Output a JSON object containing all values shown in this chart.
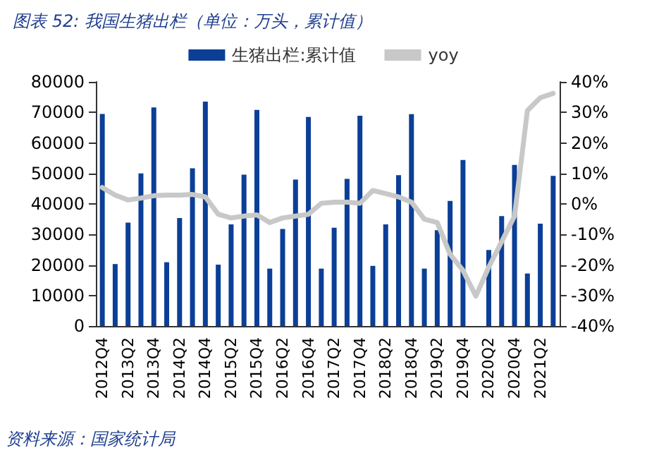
{
  "chart_data": {
    "type": "bar",
    "title": "图表 52: 我国生猪出栏（单位：万头，累计值）",
    "categories": [
      "2012Q4",
      null,
      "2013Q2",
      null,
      "2013Q4",
      null,
      "2014Q2",
      null,
      "2014Q4",
      null,
      "2015Q2",
      null,
      "2015Q4",
      null,
      "2016Q2",
      null,
      "2016Q4",
      null,
      "2017Q2",
      null,
      "2017Q4",
      null,
      "2018Q2",
      null,
      "2018Q4",
      null,
      "2019Q2",
      null,
      "2019Q4",
      null,
      "2020Q2",
      null,
      "2020Q4",
      null,
      "2021Q2",
      null
    ],
    "series": [
      {
        "name": "生猪出栏:累计值",
        "color": "#0b3f97",
        "values": [
          69500,
          20300,
          33900,
          50000,
          71600,
          20900,
          35400,
          51700,
          73500,
          20100,
          33300,
          49600,
          70800,
          18800,
          31800,
          48000,
          68500,
          18800,
          32200,
          48200,
          68900,
          19700,
          33300,
          49400,
          69400,
          18800,
          31400,
          41000,
          54400,
          null,
          24900,
          36000,
          52800,
          17200,
          33500,
          49200
        ]
      },
      {
        "name": "yoy",
        "type": "line",
        "axis": "y2",
        "color": "#c8c8c8",
        "values": [
          5.4,
          2.9,
          1.3,
          1.9,
          2.7,
          2.9,
          2.9,
          3.1,
          2.3,
          -3.4,
          -4.6,
          -4.0,
          -3.6,
          -6.1,
          -4.6,
          -4.0,
          -3.4,
          0.2,
          0.6,
          0.6,
          0.2,
          4.4,
          3.4,
          2.3,
          0.6,
          -5.0,
          -6.1,
          -16.5,
          -21.8,
          -30.2,
          -20.7,
          -12.4,
          -4.0,
          30.6,
          34.8,
          36.2
        ]
      }
    ],
    "ylim": [
      0,
      80000
    ],
    "yticks": [
      0,
      10000,
      20000,
      30000,
      40000,
      50000,
      60000,
      70000,
      80000
    ],
    "y2lim": [
      -40,
      40
    ],
    "y2ticks": [
      {
        "value": -40,
        "label": "-40%"
      },
      {
        "value": -30,
        "label": "-30%"
      },
      {
        "value": -20,
        "label": "-20%"
      },
      {
        "value": -10,
        "label": "-10%"
      },
      {
        "value": 0,
        "label": "0%"
      },
      {
        "value": 10,
        "label": "10%"
      },
      {
        "value": 20,
        "label": "20%"
      },
      {
        "value": 30,
        "label": "30%"
      },
      {
        "value": 40,
        "label": "40%"
      }
    ],
    "legend": "top",
    "grid": false,
    "marker": "none",
    "line_style": "solid",
    "annotations": [
      "资料来源：国家统计局"
    ]
  }
}
